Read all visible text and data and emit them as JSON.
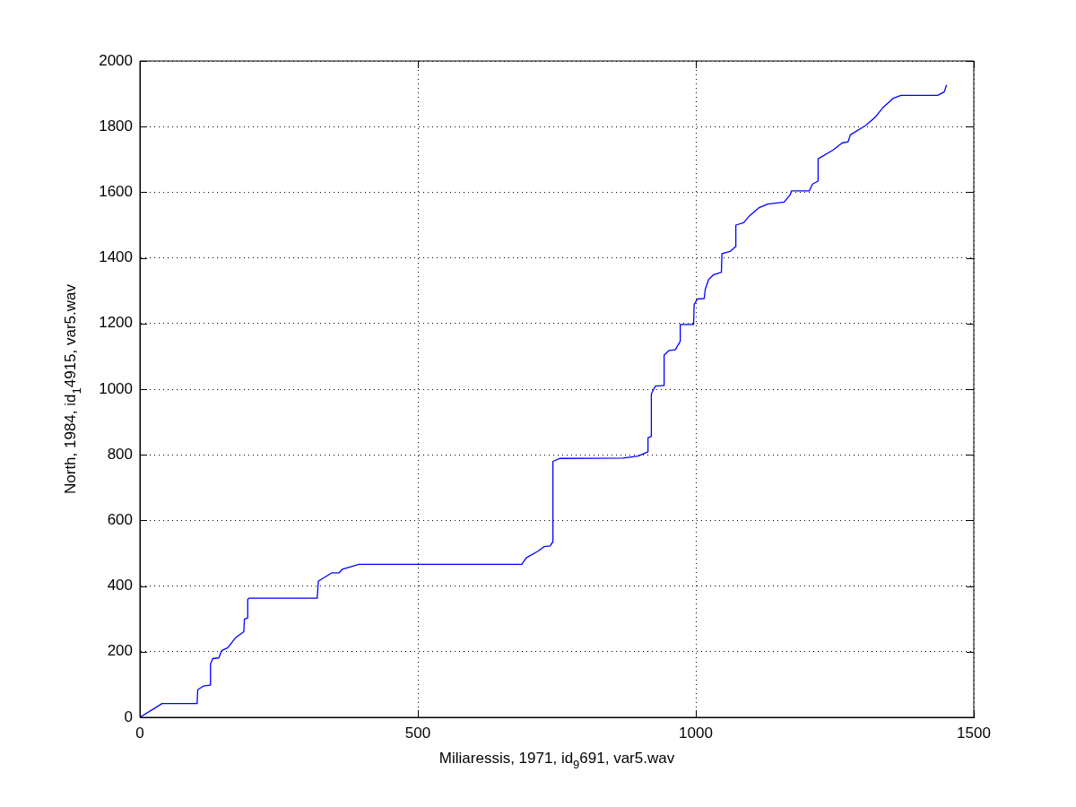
{
  "chart_data": {
    "type": "line",
    "xlabel": "Miliaressis, 1971, id$_{9}$691, var5.wav",
    "ylabel": "North, 1984, id$_{1}$4915, var5.wav",
    "xlim": [
      0,
      1500
    ],
    "xticks": [
      0,
      500,
      1000,
      1500
    ],
    "ylim": [
      0,
      2000
    ],
    "yticks": [
      0,
      200,
      400,
      600,
      800,
      1000,
      1200,
      1400,
      1600,
      1800,
      2000
    ],
    "grid": true,
    "legend": false,
    "marker": "none",
    "line_style": "solid",
    "series": [
      {
        "color": "#0000ff",
        "x": [
          0,
          40,
          103,
          104,
          114,
          126,
          127,
          131,
          142,
          147,
          158,
          173,
          187,
          188,
          194,
          194,
          197,
          319,
          321,
          326,
          345,
          358,
          364,
          394,
          687,
          695,
          716,
          727,
          738,
          742,
          743,
          756,
          869,
          896,
          914,
          914,
          920,
          920,
          927,
          942,
          943,
          952,
          963,
          972,
          972,
          996,
          997,
          1003,
          1015,
          1017,
          1023,
          1032,
          1046,
          1047,
          1062,
          1071,
          1072,
          1086,
          1097,
          1113,
          1129,
          1159,
          1170,
          1172,
          1204,
          1210,
          1220,
          1220,
          1247,
          1263,
          1274,
          1278,
          1306,
          1323,
          1336,
          1355,
          1369,
          1435,
          1447,
          1451
        ],
        "values": [
          0,
          42,
          42,
          84,
          95,
          98,
          162,
          179,
          181,
          203,
          212,
          244,
          261,
          299,
          303,
          360,
          363,
          363,
          415,
          420,
          440,
          440,
          451,
          466,
          466,
          486,
          506,
          520,
          522,
          533,
          780,
          789,
          790,
          796,
          809,
          852,
          856,
          985,
          1009,
          1011,
          1104,
          1118,
          1120,
          1146,
          1197,
          1197,
          1258,
          1275,
          1276,
          1304,
          1334,
          1349,
          1356,
          1413,
          1420,
          1434,
          1500,
          1507,
          1529,
          1552,
          1564,
          1570,
          1593,
          1604,
          1604,
          1625,
          1634,
          1702,
          1729,
          1750,
          1754,
          1775,
          1804,
          1829,
          1857,
          1886,
          1895,
          1895,
          1906,
          1927
        ]
      }
    ]
  }
}
